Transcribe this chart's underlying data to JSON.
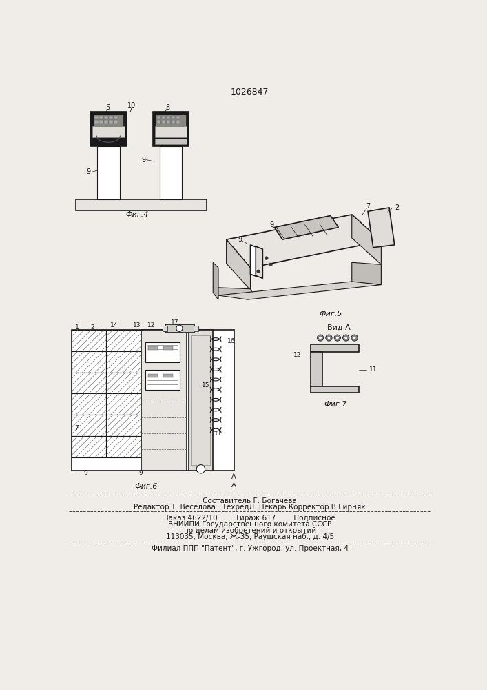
{
  "patent_number": "1026847",
  "bg": "#f0ede8",
  "lc": "#1a1a1a",
  "tc": "#1a1a1a",
  "fig4_label": "Фиг.4",
  "fig5_label": "Фиг.5",
  "fig6_label": "Фиг.6",
  "fig7_label": "Фиг.7",
  "vid_a_label": "Вид A",
  "footer_lines": [
    "Составитель Г. Богачева",
    "Редактор Т. Веселова   ТехредЛ. Пекарь Корректор В.Гирняк",
    "Заказ 4622/10        Тираж 617        Подписное",
    "ВНИИПИ Государственного комитета СССР",
    "по делам изобретений и открытий",
    "113035, Москва, Ж-35, Раушская наб., д. 4/5",
    "Филиал ППП \"Патент\", г. Ужгород, ул. Проектная, 4"
  ]
}
